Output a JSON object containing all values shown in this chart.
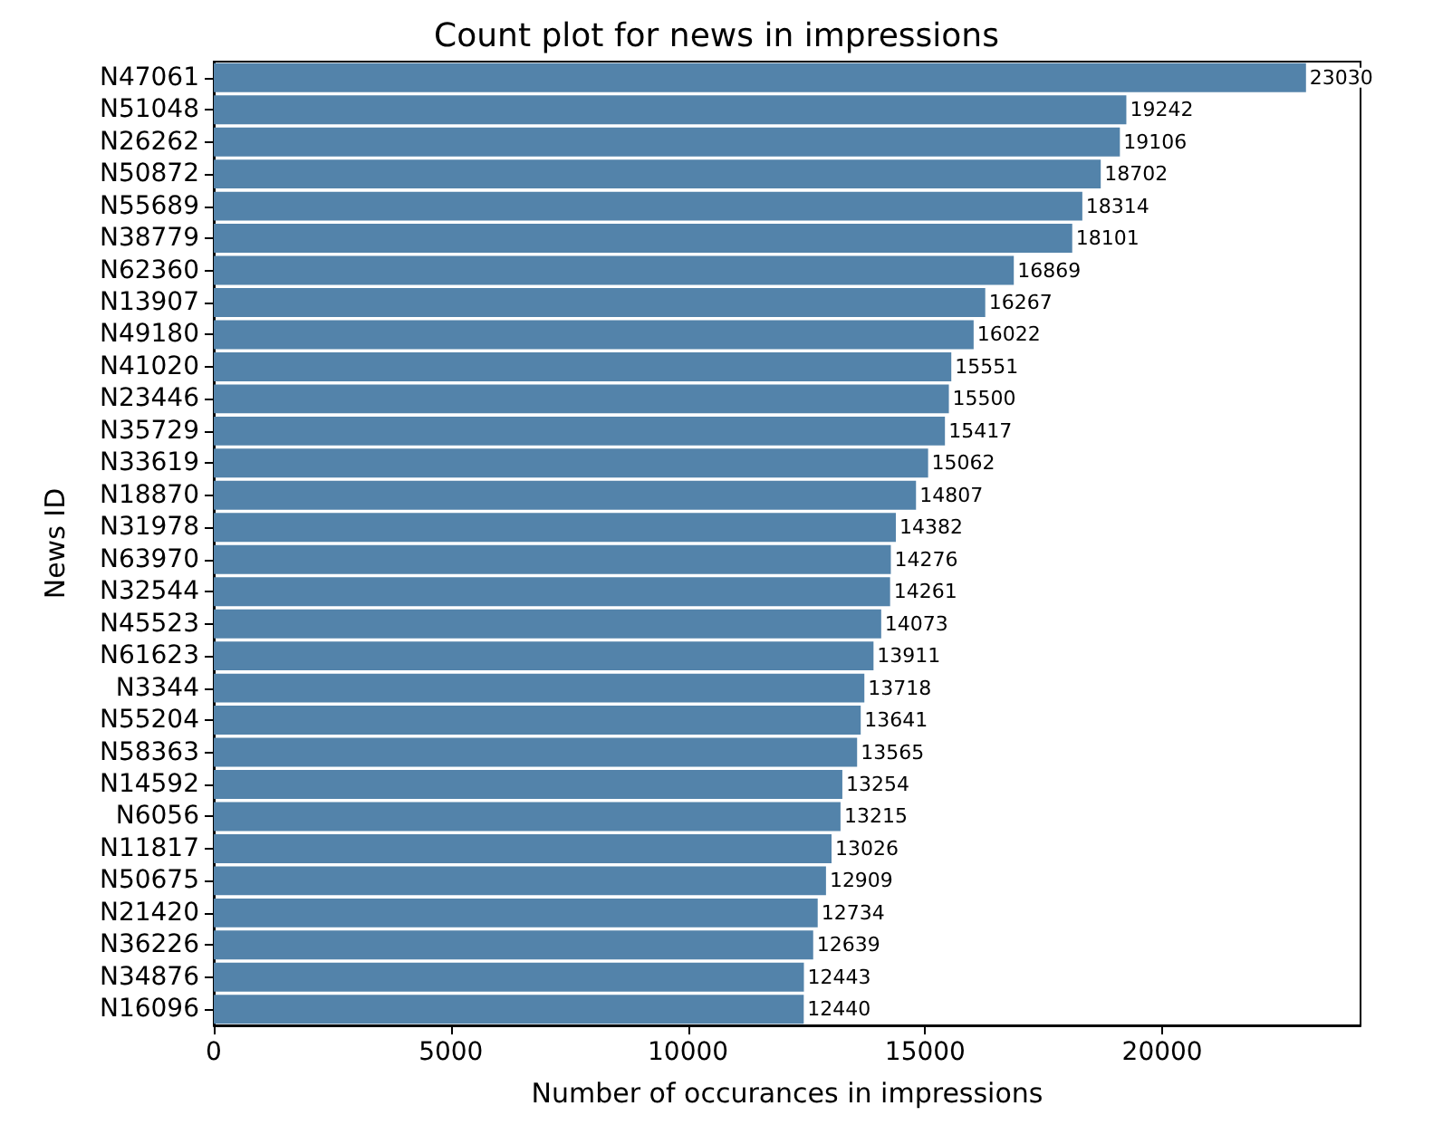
{
  "chart_data": {
    "type": "bar",
    "orientation": "horizontal",
    "title": "Count plot for news in impressions",
    "xlabel": "Number of occurances in impressions",
    "ylabel": "News ID",
    "categories": [
      "N47061",
      "N51048",
      "N26262",
      "N50872",
      "N55689",
      "N38779",
      "N62360",
      "N13907",
      "N49180",
      "N41020",
      "N23446",
      "N35729",
      "N33619",
      "N18870",
      "N31978",
      "N63970",
      "N32544",
      "N45523",
      "N61623",
      "N3344",
      "N55204",
      "N58363",
      "N14592",
      "N6056",
      "N11817",
      "N50675",
      "N21420",
      "N36226",
      "N34876",
      "N16096"
    ],
    "values": [
      23030,
      19242,
      19106,
      18702,
      18314,
      18101,
      16869,
      16267,
      16022,
      15551,
      15500,
      15417,
      15062,
      14807,
      14382,
      14276,
      14261,
      14073,
      13911,
      13718,
      13641,
      13565,
      13254,
      13215,
      13026,
      12909,
      12734,
      12639,
      12443,
      12440
    ],
    "color": "#5383aa",
    "data_labels": true,
    "xlim": [
      0,
      24180
    ],
    "xticks": [
      0,
      5000,
      10000,
      15000,
      20000
    ],
    "grid": false
  }
}
